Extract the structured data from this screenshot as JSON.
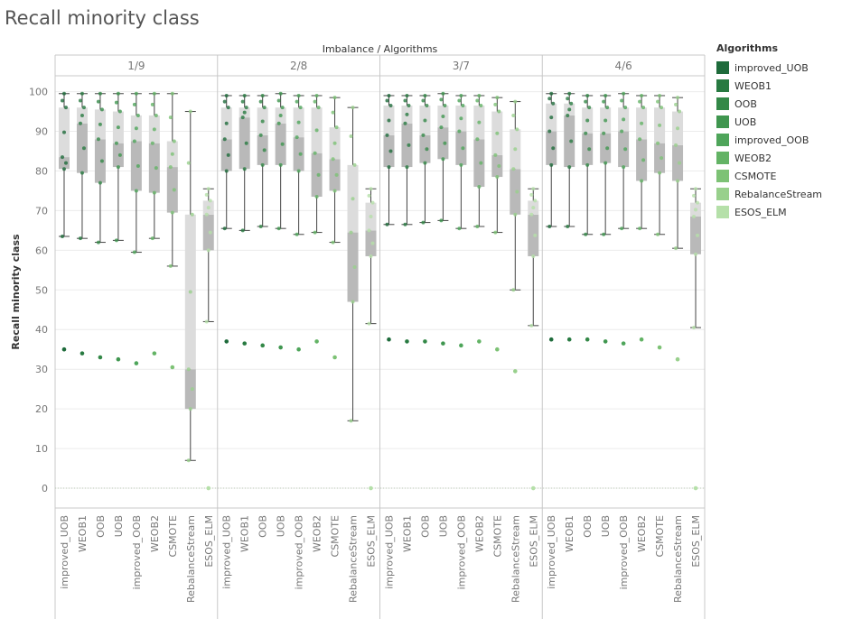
{
  "page": {
    "title": "Recall minority class"
  },
  "legend": {
    "title": "Algorithms",
    "items": [
      {
        "label": "improved_UOB",
        "color": "#1e6b3b"
      },
      {
        "label": "WEOB1",
        "color": "#287a41"
      },
      {
        "label": "OOB",
        "color": "#338847"
      },
      {
        "label": "UOB",
        "color": "#3f964f"
      },
      {
        "label": "improved_OOB",
        "color": "#4ea55a"
      },
      {
        "label": "WEOB2",
        "color": "#63b365"
      },
      {
        "label": "CSMOTE",
        "color": "#7dc275"
      },
      {
        "label": "RebalanceStream",
        "color": "#98d08c"
      },
      {
        "label": "ESOS_ELM",
        "color": "#b5e0a9"
      }
    ]
  },
  "chart_data": {
    "type": "box",
    "title": "Recall minority class",
    "column_header": "Imbalance / Algorithms",
    "ylabel": "Recall minority class",
    "ylim": [
      -5,
      104
    ],
    "yticks": [
      0,
      10,
      20,
      30,
      40,
      50,
      60,
      70,
      80,
      90,
      100
    ],
    "reference_line": 0,
    "grid": true,
    "legend_position": "right",
    "categories": [
      "improved_UOB",
      "WEOB1",
      "OOB",
      "UOB",
      "improved_OOB",
      "WEOB2",
      "CSMOTE",
      "RebalanceStream",
      "ESOS_ELM"
    ],
    "panels": [
      {
        "label": "1/9",
        "boxes": [
          {
            "min": 63.5,
            "q1": 80.5,
            "median": 83.5,
            "q3": 96,
            "max": 99.5,
            "outlier": 35
          },
          {
            "min": 63,
            "q1": 79.5,
            "median": 92,
            "q3": 96,
            "max": 99.5,
            "outlier": 34
          },
          {
            "min": 62,
            "q1": 77,
            "median": 88,
            "q3": 95.5,
            "max": 99.5,
            "outlier": 33
          },
          {
            "min": 62.5,
            "q1": 81,
            "median": 87,
            "q3": 95,
            "max": 99.5,
            "outlier": 32.5
          },
          {
            "min": 59.5,
            "q1": 75,
            "median": 87.5,
            "q3": 94,
            "max": 99.5,
            "outlier": 31.5
          },
          {
            "min": 63,
            "q1": 74.5,
            "median": 87,
            "q3": 94,
            "max": 99.5,
            "outlier": 34
          },
          {
            "min": 56,
            "q1": 69.5,
            "median": 81,
            "q3": 87.5,
            "max": 99.5,
            "outlier": 30.5
          },
          {
            "min": 7,
            "q1": 20,
            "median": 30,
            "q3": 69,
            "max": 95,
            "outlier": null
          },
          {
            "min": 42,
            "q1": 60,
            "median": 69,
            "q3": 72.5,
            "max": 75.5,
            "outlier": 0
          }
        ]
      },
      {
        "label": "2/8",
        "boxes": [
          {
            "min": 65.5,
            "q1": 80,
            "median": 88,
            "q3": 96,
            "max": 99,
            "outlier": 37
          },
          {
            "min": 65,
            "q1": 80.5,
            "median": 93.5,
            "q3": 96,
            "max": 99,
            "outlier": 36.5
          },
          {
            "min": 66,
            "q1": 81.5,
            "median": 89,
            "q3": 96,
            "max": 99,
            "outlier": 36
          },
          {
            "min": 65.5,
            "q1": 81.5,
            "median": 92,
            "q3": 96,
            "max": 99.5,
            "outlier": 35.5
          },
          {
            "min": 64,
            "q1": 80,
            "median": 88.5,
            "q3": 96,
            "max": 99,
            "outlier": 35
          },
          {
            "min": 64.5,
            "q1": 73.5,
            "median": 84.5,
            "q3": 96,
            "max": 99,
            "outlier": 37
          },
          {
            "min": 62,
            "q1": 75,
            "median": 83,
            "q3": 91,
            "max": 98.5,
            "outlier": 33
          },
          {
            "min": 17,
            "q1": 47,
            "median": 64.5,
            "q3": 81.5,
            "max": 96,
            "outlier": null
          },
          {
            "min": 41.5,
            "q1": 58.5,
            "median": 65,
            "q3": 72,
            "max": 75.5,
            "outlier": 0
          }
        ]
      },
      {
        "label": "3/7",
        "boxes": [
          {
            "min": 66.5,
            "q1": 81,
            "median": 89,
            "q3": 96.5,
            "max": 99,
            "outlier": 37.5
          },
          {
            "min": 66.5,
            "q1": 81,
            "median": 92,
            "q3": 96.5,
            "max": 99,
            "outlier": 37
          },
          {
            "min": 67,
            "q1": 82,
            "median": 89,
            "q3": 96.5,
            "max": 99,
            "outlier": 37
          },
          {
            "min": 67.5,
            "q1": 83,
            "median": 91,
            "q3": 96.5,
            "max": 99.5,
            "outlier": 36.5
          },
          {
            "min": 65.5,
            "q1": 81.5,
            "median": 90,
            "q3": 96.5,
            "max": 99,
            "outlier": 36
          },
          {
            "min": 66,
            "q1": 76,
            "median": 88,
            "q3": 96.5,
            "max": 99,
            "outlier": 37
          },
          {
            "min": 64.5,
            "q1": 78.5,
            "median": 84,
            "q3": 95,
            "max": 98.5,
            "outlier": 35
          },
          {
            "min": 50,
            "q1": 69,
            "median": 80.5,
            "q3": 90.5,
            "max": 97.5,
            "outlier": 29.5
          },
          {
            "min": 41,
            "q1": 58.5,
            "median": 69,
            "q3": 72.5,
            "max": 75.5,
            "outlier": 0
          }
        ]
      },
      {
        "label": "4/6",
        "boxes": [
          {
            "min": 66,
            "q1": 81.5,
            "median": 90,
            "q3": 97,
            "max": 99.5,
            "outlier": 37.5
          },
          {
            "min": 66,
            "q1": 81,
            "median": 94,
            "q3": 97,
            "max": 99.5,
            "outlier": 37.5
          },
          {
            "min": 64,
            "q1": 81.5,
            "median": 89.5,
            "q3": 96,
            "max": 99,
            "outlier": 37.5
          },
          {
            "min": 64,
            "q1": 82,
            "median": 89.5,
            "q3": 96,
            "max": 99,
            "outlier": 37
          },
          {
            "min": 65.5,
            "q1": 81,
            "median": 90,
            "q3": 96,
            "max": 99.5,
            "outlier": 36.5
          },
          {
            "min": 65.5,
            "q1": 77.5,
            "median": 88,
            "q3": 96,
            "max": 99,
            "outlier": 37.5
          },
          {
            "min": 64,
            "q1": 79.5,
            "median": 87,
            "q3": 96,
            "max": 99,
            "outlier": 35.5
          },
          {
            "min": 60.5,
            "q1": 77.5,
            "median": 86.5,
            "q3": 95,
            "max": 98.5,
            "outlier": 32.5
          },
          {
            "min": 40.5,
            "q1": 59,
            "median": 68.5,
            "q3": 72,
            "max": 75.5,
            "outlier": 0
          }
        ]
      }
    ]
  }
}
